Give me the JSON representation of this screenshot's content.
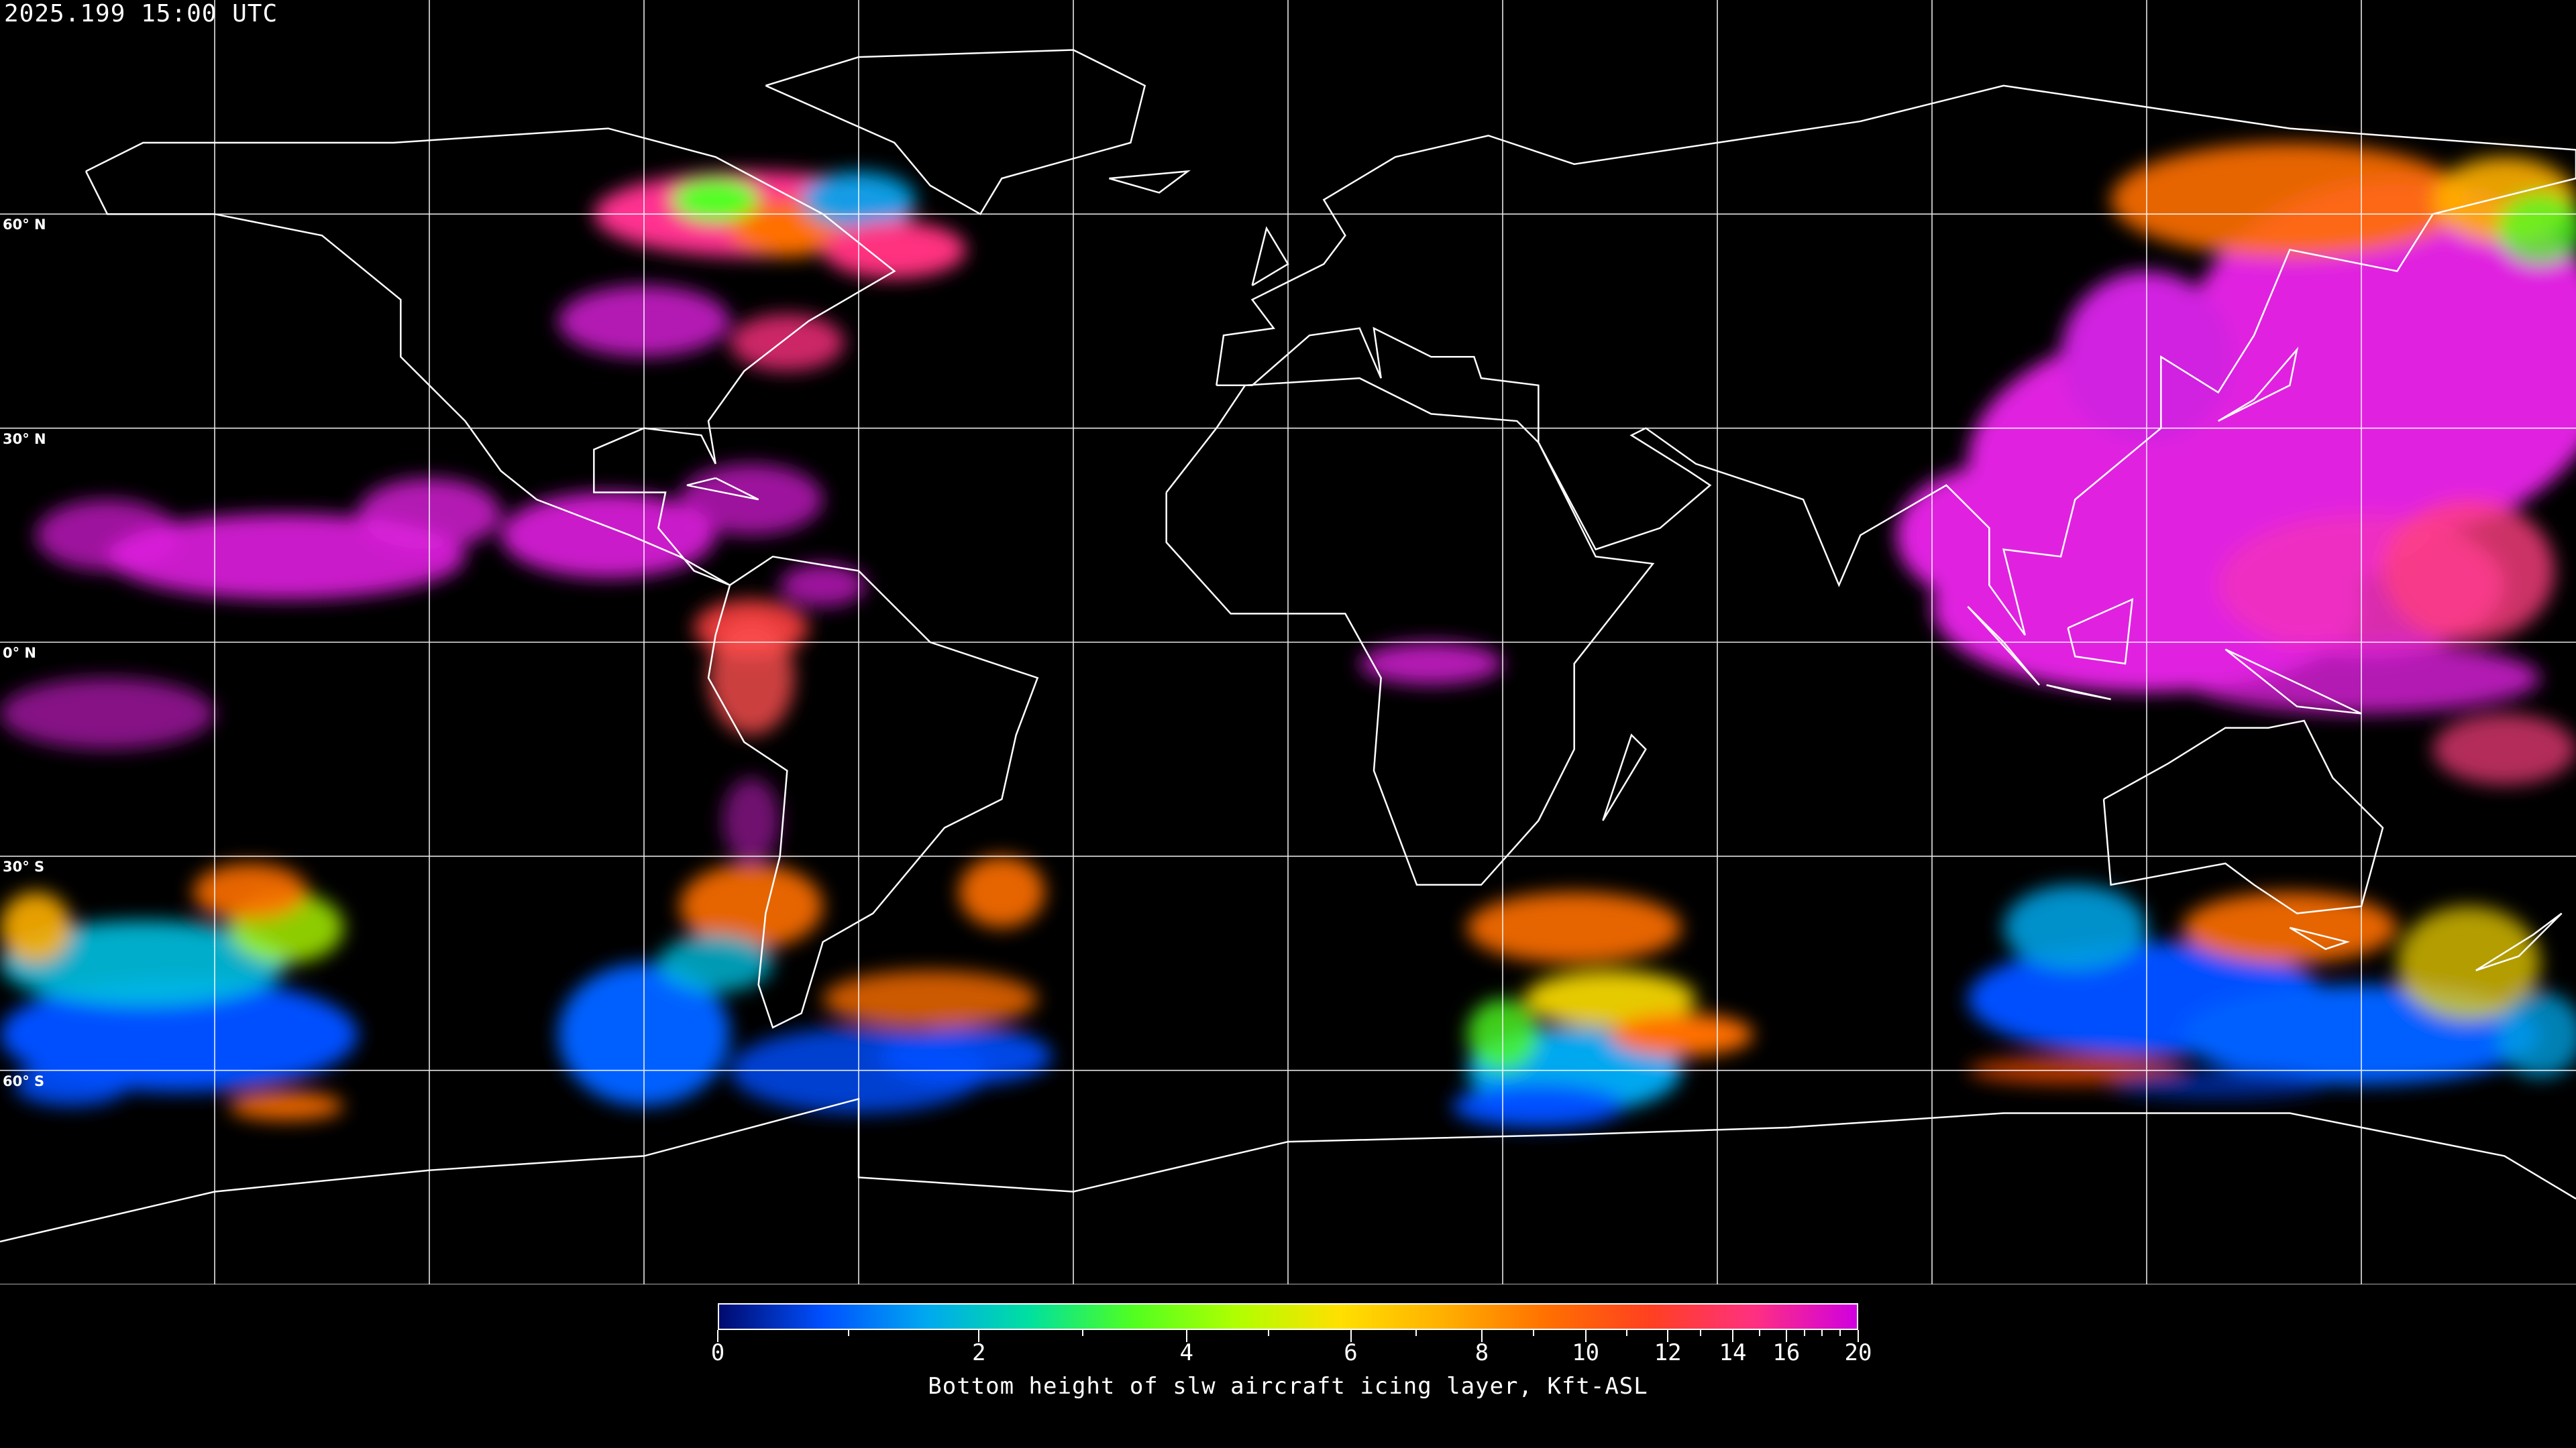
{
  "header": {
    "timestamp": "2025.199 15:00 UTC"
  },
  "map": {
    "projection": "equirectangular",
    "lon_range": [
      -180,
      180
    ],
    "lat_range": [
      -90,
      90
    ],
    "graticule_step_deg": 30,
    "lat_labels": [
      {
        "lat": 60,
        "label": "60° N"
      },
      {
        "lat": 30,
        "label": "30° N"
      },
      {
        "lat": 0,
        "label": "0° N"
      },
      {
        "lat": -30,
        "label": "30° S"
      },
      {
        "lat": -60,
        "label": "60° S"
      }
    ],
    "coastline_color": "#ffffff",
    "background_color": "#000000"
  },
  "colorbar": {
    "title": "Bottom height of slw aircraft icing layer, Kft-ASL",
    "range": [
      0,
      20
    ],
    "tick_labels": [
      "0",
      "2",
      "4",
      "6",
      "8",
      "10",
      "12",
      "14",
      "16",
      "20"
    ],
    "tick_values": [
      0,
      2,
      4,
      6,
      8,
      10,
      12,
      14,
      16,
      20
    ],
    "minor_ticks": [
      1,
      3,
      5,
      7,
      9,
      11,
      13,
      15,
      17,
      18,
      19
    ],
    "colors": [
      "#000a6e",
      "#0050ff",
      "#00a8f0",
      "#00e0a0",
      "#50ff20",
      "#b0ff00",
      "#ffe000",
      "#ffb000",
      "#ff7000",
      "#ff4020",
      "#ff3080",
      "#d000e0"
    ]
  }
}
